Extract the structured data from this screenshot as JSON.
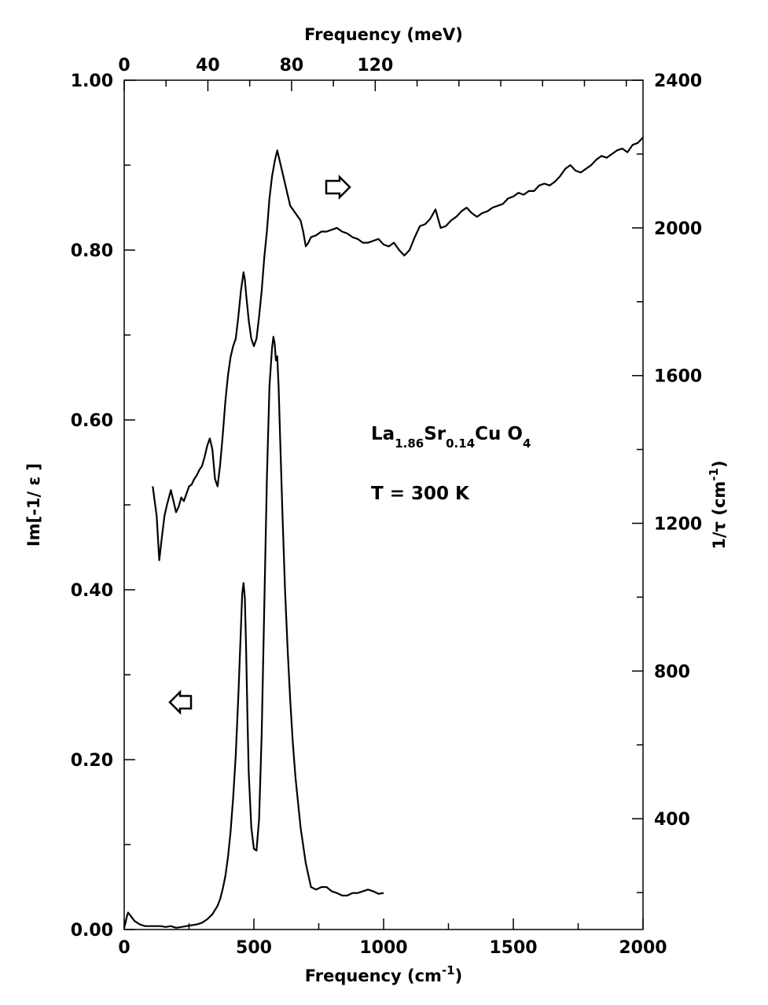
{
  "chart_data": {
    "type": "line",
    "axes": {
      "bottom": {
        "label": "Frequency (cm",
        "label_sup": "-1",
        "label_close": ")",
        "range": [
          0,
          2000
        ],
        "ticks": [
          {
            "v": 0,
            "label": "0"
          },
          {
            "v": 500,
            "label": "500"
          },
          {
            "v": 1000,
            "label": "1000"
          },
          {
            "v": 1500,
            "label": "1500"
          },
          {
            "v": 2000,
            "label": "2000"
          }
        ],
        "minor_step": 250
      },
      "top": {
        "label": "Frequency (meV)",
        "range": [
          0,
          248
        ],
        "ticks": [
          {
            "v": 0,
            "label": "0"
          },
          {
            "v": 40,
            "label": "40"
          },
          {
            "v": 80,
            "label": "80"
          },
          {
            "v": 120,
            "label": "120"
          }
        ],
        "minor_step": 20
      },
      "left": {
        "label": "Im[-1/ ε ]",
        "range": [
          0,
          1.0
        ],
        "ticks": [
          {
            "v": 0,
            "label": "0.00"
          },
          {
            "v": 0.2,
            "label": "0.20"
          },
          {
            "v": 0.4,
            "label": "0.40"
          },
          {
            "v": 0.6,
            "label": "0.60"
          },
          {
            "v": 0.8,
            "label": "0.80"
          },
          {
            "v": 1.0,
            "label": "1.00"
          }
        ],
        "minor_step": 0.1
      },
      "right": {
        "label": "1/τ (cm",
        "label_sup": "-1",
        "label_close": ")",
        "range": [
          100,
          2400
        ],
        "ticks": [
          {
            "v": 400,
            "label": "400"
          },
          {
            "v": 800,
            "label": "800"
          },
          {
            "v": 1200,
            "label": "1200"
          },
          {
            "v": 1600,
            "label": "1600"
          },
          {
            "v": 2000,
            "label": "2000"
          },
          {
            "v": 2400,
            "label": "2400"
          }
        ],
        "minor_step": 200
      }
    },
    "series": [
      {
        "axis": "left",
        "x": [
          0,
          5,
          10,
          15,
          20,
          30,
          40,
          60,
          80,
          100,
          120,
          140,
          160,
          180,
          200,
          220,
          240,
          260,
          280,
          300,
          320,
          340,
          360,
          370,
          380,
          390,
          400,
          410,
          420,
          430,
          440,
          450,
          455,
          460,
          465,
          470,
          475,
          480,
          490,
          500,
          510,
          520,
          530,
          540,
          550,
          560,
          570,
          575,
          580,
          585,
          590,
          595,
          600,
          610,
          620,
          630,
          640,
          650,
          660,
          680,
          700,
          720,
          740,
          760,
          780,
          800,
          820,
          840,
          860,
          880,
          900,
          920,
          940,
          960,
          980,
          1000
        ],
        "y": [
          0.002,
          0.008,
          0.015,
          0.02,
          0.018,
          0.014,
          0.01,
          0.006,
          0.004,
          0.004,
          0.004,
          0.004,
          0.003,
          0.004,
          0.002,
          0.003,
          0.004,
          0.005,
          0.006,
          0.008,
          0.012,
          0.018,
          0.028,
          0.036,
          0.048,
          0.063,
          0.085,
          0.115,
          0.155,
          0.205,
          0.275,
          0.355,
          0.395,
          0.408,
          0.39,
          0.33,
          0.25,
          0.185,
          0.12,
          0.095,
          0.093,
          0.13,
          0.23,
          0.38,
          0.53,
          0.64,
          0.685,
          0.698,
          0.69,
          0.67,
          0.675,
          0.64,
          0.59,
          0.49,
          0.4,
          0.33,
          0.27,
          0.22,
          0.18,
          0.12,
          0.078,
          0.05,
          0.047,
          0.05,
          0.05,
          0.045,
          0.043,
          0.04,
          0.04,
          0.043,
          0.043,
          0.045,
          0.047,
          0.045,
          0.042,
          0.043
        ]
      },
      {
        "axis": "right",
        "x": [
          110,
          125,
          135,
          145,
          155,
          165,
          180,
          190,
          200,
          210,
          220,
          230,
          240,
          250,
          260,
          270,
          280,
          290,
          300,
          310,
          320,
          330,
          340,
          350,
          360,
          370,
          380,
          390,
          400,
          410,
          420,
          430,
          440,
          450,
          460,
          465,
          470,
          480,
          490,
          500,
          510,
          520,
          530,
          540,
          550,
          560,
          570,
          580,
          590,
          600,
          610,
          620,
          630,
          640,
          650,
          660,
          670,
          680,
          690,
          700,
          710,
          720,
          740,
          760,
          780,
          800,
          820,
          840,
          860,
          880,
          900,
          920,
          940,
          960,
          980,
          1000,
          1020,
          1040,
          1060,
          1080,
          1100,
          1120,
          1140,
          1160,
          1180,
          1200,
          1220,
          1240,
          1260,
          1280,
          1300,
          1320,
          1340,
          1360,
          1380,
          1400,
          1420,
          1440,
          1460,
          1480,
          1500,
          1520,
          1540,
          1560,
          1580,
          1600,
          1620,
          1640,
          1660,
          1680,
          1700,
          1720,
          1740,
          1760,
          1780,
          1800,
          1820,
          1840,
          1860,
          1880,
          1900,
          1920,
          1940,
          1960,
          1980,
          2000
        ],
        "y": [
          1300,
          1220,
          1100,
          1160,
          1220,
          1250,
          1290,
          1260,
          1230,
          1245,
          1270,
          1260,
          1280,
          1300,
          1305,
          1320,
          1330,
          1345,
          1355,
          1380,
          1410,
          1430,
          1400,
          1320,
          1300,
          1360,
          1440,
          1530,
          1600,
          1650,
          1680,
          1700,
          1760,
          1830,
          1880,
          1860,
          1820,
          1750,
          1700,
          1680,
          1700,
          1760,
          1830,
          1920,
          1990,
          2080,
          2140,
          2180,
          2210,
          2180,
          2150,
          2120,
          2090,
          2060,
          2050,
          2040,
          2030,
          2020,
          1990,
          1950,
          1960,
          1975,
          1980,
          1990,
          1990,
          1995,
          2000,
          1990,
          1985,
          1975,
          1970,
          1960,
          1960,
          1965,
          1970,
          1955,
          1950,
          1960,
          1940,
          1925,
          1940,
          1975,
          2005,
          2010,
          2025,
          2050,
          2000,
          2005,
          2020,
          2030,
          2045,
          2055,
          2040,
          2030,
          2040,
          2045,
          2055,
          2060,
          2065,
          2080,
          2085,
          2095,
          2090,
          2100,
          2100,
          2115,
          2120,
          2115,
          2125,
          2140,
          2160,
          2170,
          2155,
          2150,
          2160,
          2170,
          2185,
          2195,
          2190,
          2200,
          2210,
          2215,
          2205,
          2225,
          2230,
          2245
        ]
      }
    ],
    "annotations": {
      "compound": {
        "parts": [
          {
            "t": "La",
            "sub": false
          },
          {
            "t": "1.86",
            "sub": true
          },
          {
            "t": "Sr",
            "sub": false
          },
          {
            "t": "0.14",
            "sub": true
          },
          {
            "t": "Cu O",
            "sub": false
          },
          {
            "t": "4",
            "sub": true
          }
        ]
      },
      "temperature": "T = 300 K",
      "arrow_right_series": "arrow-pointing-right",
      "arrow_left_series": "arrow-pointing-left"
    }
  }
}
